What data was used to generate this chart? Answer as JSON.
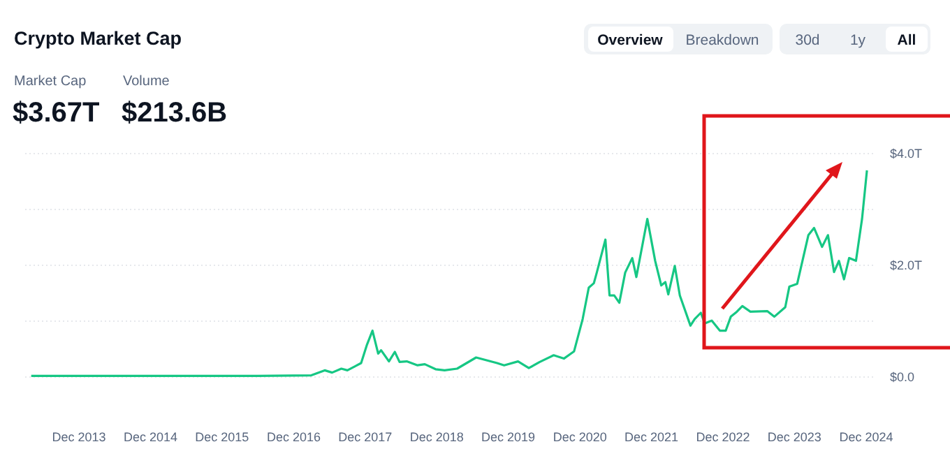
{
  "chart_data": {
    "type": "line",
    "title": "Crypto Market Cap",
    "annotations": [
      "Market Cap",
      "$3.67T",
      "Volume",
      "$213.6B",
      "Overview",
      "Breakdown",
      "30d",
      "1y",
      "All"
    ],
    "x": [
      "2013-04-01",
      "2013-12-01",
      "2016-06-01",
      "2017-03-01",
      "2017-05-08",
      "2017-06-15",
      "2017-08-01",
      "2017-09-01",
      "2017-11-10",
      "2017-12-10",
      "2018-01-07",
      "2018-02-05",
      "2018-02-20",
      "2018-04-01",
      "2018-05-01",
      "2018-05-25",
      "2018-07-01",
      "2018-08-25",
      "2018-10-01",
      "2018-11-25",
      "2019-01-10",
      "2019-03-15",
      "2019-06-20",
      "2019-10-05",
      "2019-11-10",
      "2020-01-20",
      "2020-03-15",
      "2020-05-10",
      "2020-07-20",
      "2020-09-10",
      "2020-11-01",
      "2020-12-15",
      "2021-01-15",
      "2021-02-10",
      "2021-02-25",
      "2021-04-10",
      "2021-05-01",
      "2021-05-25",
      "2021-06-20",
      "2021-07-20",
      "2021-08-25",
      "2021-09-15",
      "2021-11-10",
      "2021-12-20",
      "2022-01-20",
      "2022-02-10",
      "2022-02-25",
      "2022-03-30",
      "2022-04-25",
      "2022-06-18",
      "2022-07-10",
      "2022-08-10",
      "2022-08-30",
      "2022-10-05",
      "2022-11-15",
      "2022-12-15",
      "2023-01-10",
      "2023-02-10",
      "2023-03-10",
      "2023-04-20",
      "2023-07-15",
      "2023-08-20",
      "2023-10-15",
      "2023-11-05",
      "2023-12-15",
      "2024-02-10",
      "2024-03-10",
      "2024-04-20",
      "2024-05-20",
      "2024-06-20",
      "2024-07-15",
      "2024-08-10",
      "2024-09-05",
      "2024-10-10",
      "2024-11-10",
      "2024-12-05"
    ],
    "series": [
      {
        "color": "#16c784",
        "values": [
          0.02,
          0.02,
          0.02,
          0.03,
          0.12,
          0.08,
          0.15,
          0.12,
          0.25,
          0.58,
          0.83,
          0.42,
          0.48,
          0.28,
          0.45,
          0.27,
          0.28,
          0.21,
          0.23,
          0.14,
          0.12,
          0.15,
          0.35,
          0.25,
          0.21,
          0.28,
          0.16,
          0.27,
          0.39,
          0.33,
          0.46,
          1.04,
          1.6,
          1.68,
          1.87,
          2.46,
          1.46,
          1.46,
          1.33,
          1.87,
          2.13,
          1.79,
          2.83,
          2.08,
          1.64,
          1.7,
          1.48,
          1.99,
          1.46,
          0.92,
          1.04,
          1.15,
          0.96,
          1.01,
          0.83,
          0.83,
          1.08,
          1.17,
          1.27,
          1.17,
          1.18,
          1.08,
          1.25,
          1.62,
          1.67,
          2.54,
          2.67,
          2.33,
          2.54,
          1.88,
          2.08,
          1.75,
          2.13,
          2.08,
          2.83,
          3.7
        ]
      }
    ],
    "xlim": [
      "2013-03-01",
      "2025-01-20"
    ],
    "xticks": [
      {
        "value": "2013-12-01",
        "label": "Dec 2013"
      },
      {
        "value": "2014-12-01",
        "label": "Dec 2014"
      },
      {
        "value": "2015-12-01",
        "label": "Dec 2015"
      },
      {
        "value": "2016-12-01",
        "label": "Dec 2016"
      },
      {
        "value": "2017-12-01",
        "label": "Dec 2017"
      },
      {
        "value": "2018-12-01",
        "label": "Dec 2018"
      },
      {
        "value": "2019-12-01",
        "label": "Dec 2019"
      },
      {
        "value": "2020-12-01",
        "label": "Dec 2020"
      },
      {
        "value": "2021-12-01",
        "label": "Dec 2021"
      },
      {
        "value": "2022-12-01",
        "label": "Dec 2022"
      },
      {
        "value": "2023-12-01",
        "label": "Dec 2023"
      },
      {
        "value": "2024-12-01",
        "label": "Dec 2024"
      }
    ],
    "ylim": [
      0,
      4
    ],
    "yticks": [
      {
        "value": 0,
        "label": "$0.0"
      },
      {
        "value": 1,
        "label": null
      },
      {
        "value": 2,
        "label": "$2.0T"
      },
      {
        "value": 3,
        "label": null
      },
      {
        "value": 4,
        "label": "$4.0T"
      }
    ],
    "grid": "y",
    "marker": "none",
    "line_style": "solid"
  }
}
